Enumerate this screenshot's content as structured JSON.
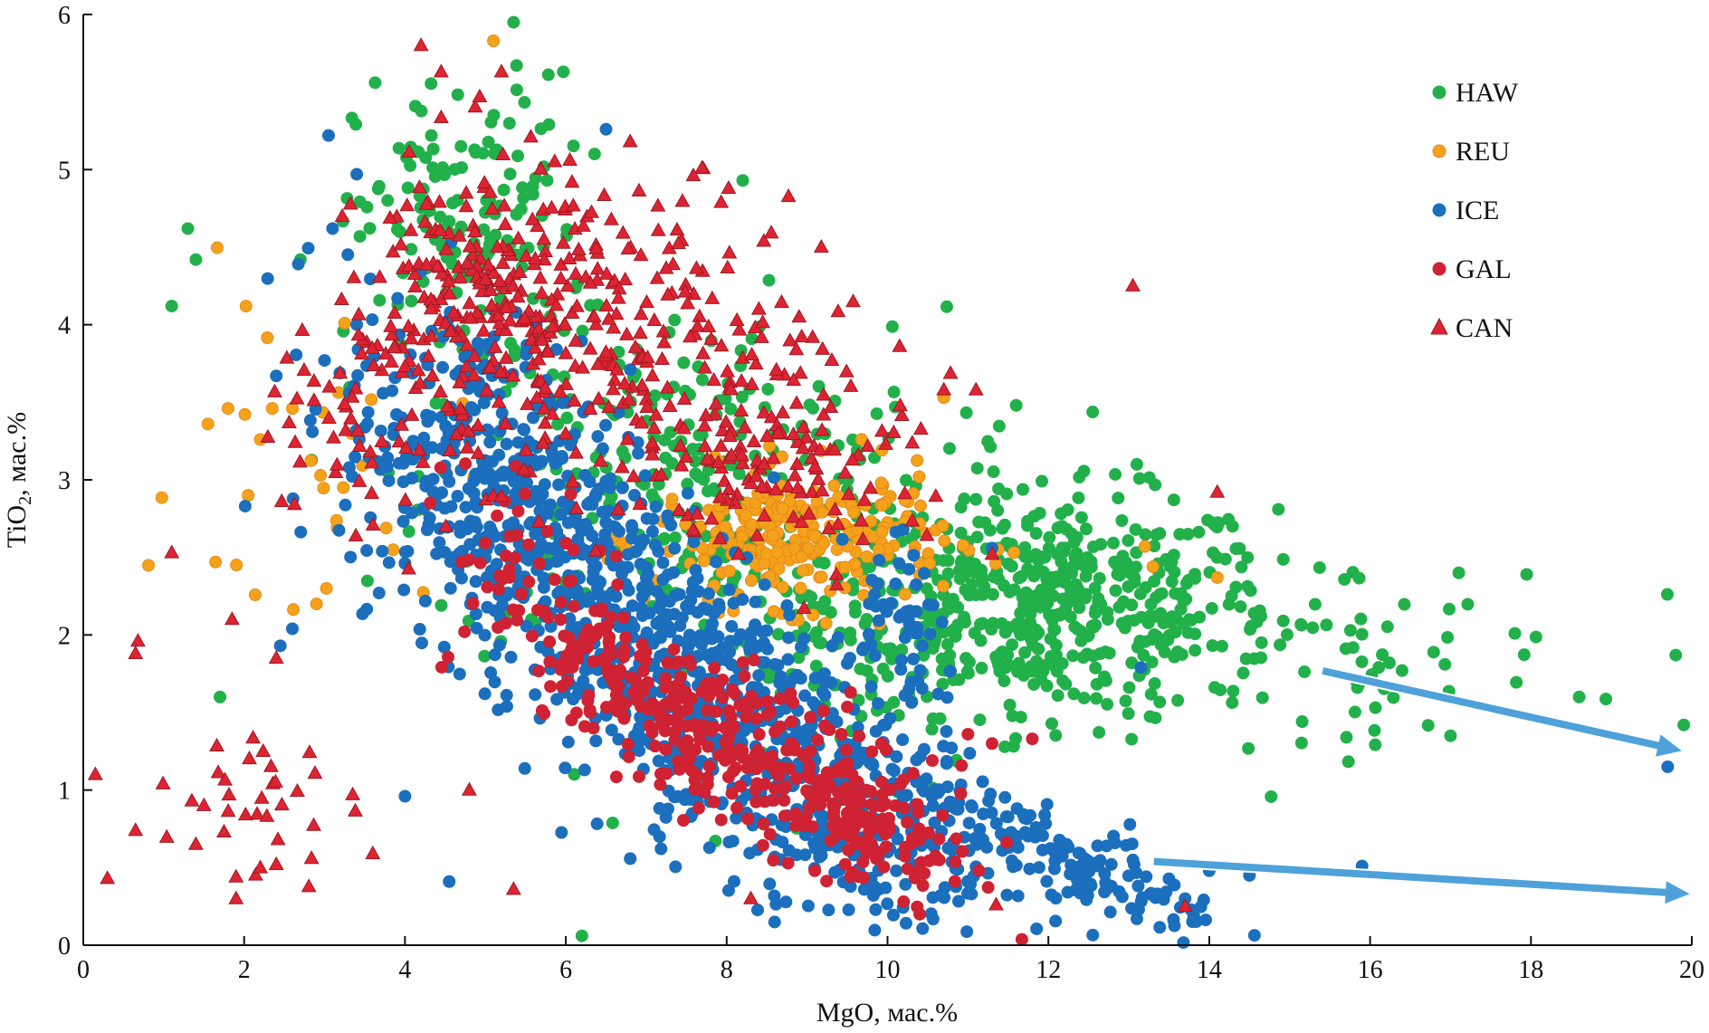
{
  "chart_data": {
    "type": "scatter",
    "xlabel": "MgO, мас.%",
    "ylabel_main": "TiO",
    "ylabel_sub": "2",
    "ylabel_rest": ", мас.%",
    "xlim": [
      0,
      20
    ],
    "ylim": [
      0,
      6
    ],
    "x_ticks": [
      0,
      2,
      4,
      6,
      8,
      10,
      12,
      14,
      16,
      18,
      20
    ],
    "y_ticks": [
      0,
      1,
      2,
      3,
      4,
      5,
      6
    ],
    "grid": false,
    "legend_position": "top-right",
    "series": [
      {
        "name": "HAW",
        "marker": "circle",
        "color": "#22b04a",
        "stroke": "#22b04a",
        "clusters": [
          {
            "cx": 12.0,
            "cy": 2.2,
            "sx": 1.4,
            "sy": 0.35,
            "n": 520
          },
          {
            "cx": 7.5,
            "cy": 3.0,
            "sx": 1.6,
            "sy": 0.55,
            "n": 260
          },
          {
            "cx": 4.8,
            "cy": 4.6,
            "sx": 0.7,
            "sy": 0.5,
            "n": 160
          },
          {
            "cx": 15.5,
            "cy": 1.9,
            "sx": 1.6,
            "sy": 0.3,
            "n": 70
          },
          {
            "cx": 9.5,
            "cy": 1.8,
            "sx": 1.2,
            "sy": 0.4,
            "n": 80
          }
        ],
        "points": [
          [
            1.1,
            4.12
          ],
          [
            1.3,
            4.62
          ],
          [
            1.4,
            4.42
          ],
          [
            1.7,
            1.6
          ],
          [
            2.7,
            4.42
          ],
          [
            5.35,
            5.95
          ],
          [
            6.2,
            0.06
          ],
          [
            8.2,
            4.93
          ],
          [
            17.0,
            1.35
          ],
          [
            19.8,
            1.87
          ],
          [
            19.9,
            1.42
          ],
          [
            18.6,
            1.6
          ],
          [
            17.8,
            2.01
          ],
          [
            13.1,
            3.1
          ],
          [
            11.6,
            3.48
          ]
        ]
      },
      {
        "name": "REU",
        "marker": "circle",
        "color": "#f5a21b",
        "stroke": "#e8891a",
        "clusters": [
          {
            "cx": 8.9,
            "cy": 2.62,
            "sx": 0.9,
            "sy": 0.22,
            "n": 260
          },
          {
            "cx": 3.0,
            "cy": 3.0,
            "sx": 0.9,
            "sy": 0.6,
            "n": 30
          }
        ],
        "points": [
          [
            5.1,
            5.83
          ],
          [
            1.55,
            3.36
          ],
          [
            1.8,
            3.46
          ],
          [
            2.05,
            2.9
          ],
          [
            2.35,
            3.46
          ],
          [
            2.6,
            3.46
          ],
          [
            3.25,
            4.01
          ],
          [
            2.9,
            2.2
          ],
          [
            13.2,
            2.57
          ],
          [
            13.3,
            2.44
          ],
          [
            14.1,
            2.37
          ],
          [
            10.7,
            3.53
          ]
        ]
      },
      {
        "name": "ICE",
        "marker": "circle",
        "color": "#1b6fbd",
        "stroke": "#1b6fbd",
        "clusters": [
          {
            "cx": 5.0,
            "cy": 3.0,
            "sx": 0.9,
            "sy": 0.55,
            "n": 420
          },
          {
            "cx": 7.0,
            "cy": 2.0,
            "sx": 1.0,
            "sy": 0.5,
            "n": 420
          },
          {
            "cx": 9.0,
            "cy": 1.1,
            "sx": 1.2,
            "sy": 0.45,
            "n": 420
          },
          {
            "cx": 12.2,
            "cy": 0.55,
            "sx": 1.0,
            "sy": 0.15,
            "n": 160
          },
          {
            "cx": 10.3,
            "cy": 2.0,
            "sx": 0.3,
            "sy": 0.25,
            "n": 50
          }
        ],
        "points": [
          [
            3.05,
            5.22
          ],
          [
            3.4,
            4.97
          ],
          [
            3.1,
            4.62
          ],
          [
            2.4,
            3.67
          ],
          [
            3.0,
            3.77
          ],
          [
            2.45,
            1.93
          ],
          [
            2.6,
            2.04
          ],
          [
            4.0,
            0.96
          ],
          [
            4.55,
            0.41
          ],
          [
            13.1,
            0.17
          ],
          [
            13.7,
            0.3
          ],
          [
            13.15,
            1.79
          ],
          [
            19.7,
            1.15
          ],
          [
            15.9,
            0.51
          ],
          [
            14.0,
            0.48
          ],
          [
            14.5,
            0.45
          ],
          [
            6.5,
            5.26
          ],
          [
            11.3,
            2.56
          ]
        ]
      },
      {
        "name": "GAL",
        "marker": "circle",
        "color": "#cf2232",
        "stroke": "#cf2232",
        "clusters": [
          {
            "cx": 7.0,
            "cy": 1.6,
            "sx": 0.9,
            "sy": 0.25,
            "n": 170
          },
          {
            "cx": 8.8,
            "cy": 1.1,
            "sx": 0.9,
            "sy": 0.25,
            "n": 170
          },
          {
            "cx": 9.8,
            "cy": 0.75,
            "sx": 0.5,
            "sy": 0.2,
            "n": 90
          },
          {
            "cx": 5.8,
            "cy": 2.3,
            "sx": 0.6,
            "sy": 0.3,
            "n": 60
          }
        ],
        "points": [
          [
            10.4,
            0.2
          ],
          [
            10.2,
            0.28
          ],
          [
            11.0,
            1.36
          ],
          [
            11.3,
            1.3
          ],
          [
            11.8,
            1.33
          ]
        ]
      },
      {
        "name": "CAN",
        "marker": "triangle",
        "color": "#dd2433",
        "stroke": "#a01822",
        "clusters": [
          {
            "cx": 4.8,
            "cy": 4.1,
            "sx": 0.7,
            "sy": 0.5,
            "n": 220
          },
          {
            "cx": 7.0,
            "cy": 3.9,
            "sx": 1.0,
            "sy": 0.5,
            "n": 200
          },
          {
            "cx": 8.8,
            "cy": 3.2,
            "sx": 0.8,
            "sy": 0.35,
            "n": 120
          },
          {
            "cx": 3.4,
            "cy": 3.3,
            "sx": 0.6,
            "sy": 0.4,
            "n": 45
          },
          {
            "cx": 2.2,
            "cy": 0.95,
            "sx": 0.5,
            "sy": 0.3,
            "n": 28
          }
        ],
        "points": [
          [
            0.15,
            1.1
          ],
          [
            0.3,
            0.43
          ],
          [
            0.65,
            0.74
          ],
          [
            0.65,
            1.88
          ],
          [
            0.68,
            1.96
          ],
          [
            1.1,
            2.53
          ],
          [
            1.35,
            0.93
          ],
          [
            1.4,
            0.65
          ],
          [
            1.5,
            0.9
          ],
          [
            1.75,
            0.73
          ],
          [
            1.85,
            2.1
          ],
          [
            1.9,
            0.3
          ],
          [
            1.9,
            0.44
          ],
          [
            2.4,
            0.52
          ],
          [
            2.4,
            1.85
          ],
          [
            4.2,
            5.8
          ],
          [
            4.45,
            5.63
          ],
          [
            5.2,
            5.63
          ],
          [
            6.05,
            5.06
          ],
          [
            6.8,
            5.18
          ],
          [
            8.4,
            4.1
          ],
          [
            8.9,
            4.05
          ],
          [
            10.15,
            3.86
          ],
          [
            10.7,
            3.58
          ],
          [
            11.1,
            3.58
          ],
          [
            13.05,
            4.25
          ],
          [
            14.1,
            2.92
          ],
          [
            11.3,
            2.52
          ],
          [
            13.7,
            0.25
          ],
          [
            11.35,
            0.26
          ],
          [
            8.3,
            0.3
          ],
          [
            5.35,
            0.36
          ],
          [
            3.6,
            0.59
          ],
          [
            4.8,
            1.0
          ],
          [
            3.35,
            0.97
          ]
        ]
      }
    ]
  },
  "arrows": [
    {
      "name": "upper-trend-arrow",
      "from": [
        15.4,
        1.77
      ],
      "to": [
        19.9,
        1.25
      ],
      "color": "#4ea1d9"
    },
    {
      "name": "lower-trend-arrow",
      "from": [
        13.3,
        0.54
      ],
      "to": [
        20.0,
        0.33
      ],
      "color": "#4ea1d9"
    }
  ]
}
